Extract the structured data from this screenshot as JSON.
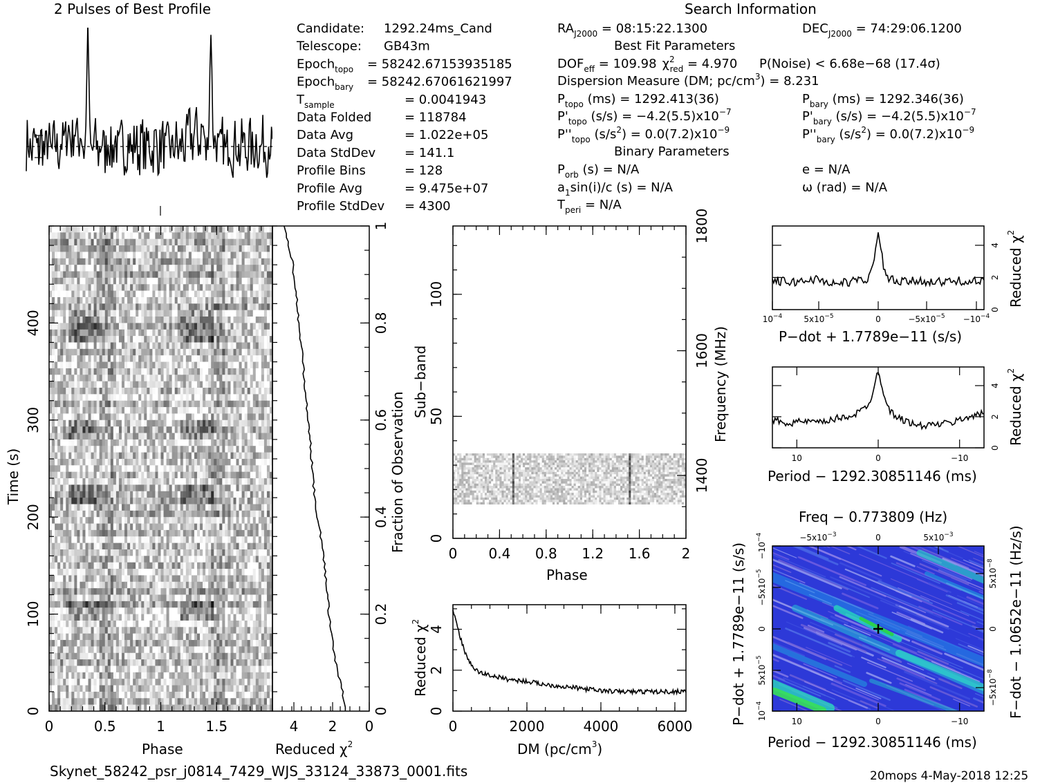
{
  "titles": {
    "profile": "2 Pulses of Best Profile",
    "search": "Search Information",
    "best_fit": "Best Fit Parameters",
    "binary": "Binary Parameters",
    "filename": "Skynet_58242_psr_j0814_7429_WJS_33124_33873_0001.fits",
    "footer_right": "20mops   4-May-2018 12:25"
  },
  "info_left": [
    {
      "label": "Candidate:",
      "value": "1292.24ms_Cand"
    },
    {
      "label": "Telescope:",
      "value": "GB43m"
    },
    {
      "label": "Epoch",
      "sub": "topo",
      "value": "= 58242.67153935185"
    },
    {
      "label": "Epoch",
      "sub": "bary",
      "value": "= 58242.67061621997"
    },
    {
      "label": "T",
      "sub": "sample",
      "value": "=   0.0041943"
    },
    {
      "label": "Data Folded",
      "value": "=   118784"
    },
    {
      "label": "Data Avg",
      "value": "=   1.022e+05"
    },
    {
      "label": "Data StdDev",
      "value": "=   141.1"
    },
    {
      "label": "Profile Bins",
      "value": "=   128"
    },
    {
      "label": "Profile Avg",
      "value": "=   9.475e+07"
    },
    {
      "label": "Profile StdDev",
      "value": "=   4300"
    }
  ],
  "info_mid": {
    "ra": "RA",
    "ra_sub": "J2000",
    "ra_val": " = 08:15:22.1300",
    "dof": "DOF",
    "dof_sub": "eff",
    "dof_val": " = 109.98",
    "chi": "χ",
    "chi_sup": "2",
    "chi_sub": "red",
    "chi_val": " = 4.970",
    "dm": "Dispersion Measure (DM; pc/cm",
    "dm_sup": "3",
    "dm_val": ") = 8.231",
    "ptopo": "P",
    "ptopo_sub": "topo",
    "ptopo_val": " (ms)  =   1292.413(36)",
    "pdtopo": "P'",
    "pdtopo_sub": "topo",
    "pdtopo_val": " (s/s) = −4.2(5.5)x10",
    "pdtopo_exp": "−7",
    "pddtopo": "P''",
    "pddtopo_sub": "topo",
    "pddtopo_val": " (s/s",
    "pddtopo_sup": "2",
    "pddtopo_val2": ") = 0.0(7.2)x10",
    "pddtopo_exp": "−9",
    "porb": "P",
    "porb_sub": "orb",
    "porb_val": " (s) = N/A",
    "a1": "a",
    "a1_sub": "1",
    "a1_val": "sin(i)/c (s) = N/A",
    "tperi": "T",
    "tperi_sub": "peri",
    "tperi_val": " = N/A"
  },
  "info_right": {
    "dec": "DEC",
    "dec_sub": "J2000",
    "dec_val": " = 74:29:06.1200",
    "pnoise": "P(Noise) < 6.68e−68   (17.4σ)",
    "pbary": "P",
    "pbary_sub": "bary",
    "pbary_val": " (ms)  =   1292.346(36)",
    "pdbary": "P'",
    "pdbary_sub": "bary",
    "pdbary_val": " (s/s) = −4.2(5.5)x10",
    "pdbary_exp": "−7",
    "pddbary": "P''",
    "pddbary_sub": "bary",
    "pddbary_val": " (s/s",
    "pddbary_sup": "2",
    "pddbary_val2": ") = 0.0(7.2)x10",
    "pddbary_exp": "−9",
    "ecc": "e = N/A",
    "omega": "ω (rad) = N/A"
  },
  "axis_text": {
    "phase": "Phase",
    "time": "Time (s)",
    "reduced_chi": "Reduced χ",
    "chi_sup": "2",
    "fraction": "Fraction of Observation",
    "subband": "Sub−band",
    "frequency": "Frequency (MHz)",
    "dm": "DM (pc/cm",
    "dm_sup": "3",
    "dm_close": ")",
    "pdot_label": "P−dot + 1.7789e−11 (s/s)",
    "period_label": "Period − 1292.30851146 (ms)",
    "freq_label": "Freq − 0.773809 (Hz)",
    "fdot_label": "F−dot − 1.0652e−11 (Hz/s)",
    "pdot_side": "P−dot + 1.7789e−11 (s/s)"
  },
  "ticks": {
    "phase_main": [
      "0",
      "0.5",
      "1",
      "1.5"
    ],
    "time": [
      "0",
      "100",
      "200",
      "300",
      "400"
    ],
    "redchi_bottom": [
      "4",
      "2",
      "0"
    ],
    "fraction": [
      "0",
      "0.2",
      "0.4",
      "0.6",
      "0.8",
      "1"
    ],
    "subband": [
      "0",
      "50",
      "100"
    ],
    "freq": [
      "1400",
      "1600",
      "1800"
    ],
    "phase_sub": [
      "0",
      "0.4",
      "0.8",
      "1.2",
      "1.6",
      "2"
    ],
    "dm": [
      "0",
      "2000",
      "4000",
      "6000"
    ],
    "redchi_dm": [
      "0",
      "2",
      "4"
    ],
    "redchi_small": [
      "0",
      "2",
      "4"
    ],
    "pdot_x": [
      "10",
      "−4",
      "5x10",
      "−5",
      "0",
      "−5x10",
      "−5",
      "−10",
      "−4"
    ],
    "period_x": [
      "10",
      "0",
      "−10"
    ],
    "freq_top": [
      "−5x10",
      "−3",
      "0",
      "5x10",
      "−3"
    ],
    "pp_left": [
      "10",
      "−4",
      "5x10",
      "−5",
      "0",
      "−5x10",
      "−5",
      "−10",
      "−4"
    ],
    "pp_right": [
      "5x10",
      "−8",
      "0",
      "−5x10",
      "−8"
    ]
  },
  "chart_data": [
    {
      "type": "line",
      "title": "2 Pulses of Best Profile",
      "x": [
        0,
        0.05,
        0.1,
        0.15,
        0.2,
        0.25,
        0.3,
        0.35,
        0.4,
        0.45,
        0.48,
        0.5,
        0.52,
        0.55,
        0.6,
        0.65,
        0.7,
        0.75,
        0.8,
        0.85,
        0.9,
        0.95,
        1.0,
        1.05,
        1.1,
        1.15,
        1.2,
        1.25,
        1.3,
        1.35,
        1.4,
        1.45,
        1.48,
        1.5,
        1.52,
        1.55,
        1.6,
        1.65,
        1.7,
        1.75,
        1.8,
        1.85,
        1.9,
        1.95,
        2.0
      ],
      "y": [
        0.1,
        -0.2,
        0.4,
        -0.6,
        0.3,
        0.9,
        -0.1,
        0.5,
        0.0,
        0.8,
        2.4,
        8.0,
        2.5,
        0.3,
        -0.5,
        0.6,
        -0.4,
        0.2,
        0.7,
        -0.3,
        0.4,
        -0.2,
        0.1,
        -0.2,
        0.4,
        -0.6,
        0.3,
        0.9,
        -0.1,
        0.5,
        0.0,
        0.8,
        2.4,
        8.0,
        2.5,
        0.3,
        -0.5,
        0.6,
        -0.4,
        0.2,
        0.7,
        -0.3,
        0.4,
        -0.2,
        0.1
      ]
    },
    {
      "type": "line",
      "xlabel": "Reduced χ2",
      "ylabel": "Time (s)",
      "x": [
        1.3,
        1.5,
        1.8,
        2.0,
        2.2,
        2.3,
        2.5,
        2.7,
        2.9,
        3.0,
        3.1,
        3.2,
        3.3,
        3.4,
        3.5,
        3.6,
        3.7,
        3.8,
        3.9,
        4.0,
        4.1,
        4.2,
        4.3,
        4.4,
        4.5
      ],
      "y": [
        0,
        20,
        45,
        70,
        100,
        130,
        160,
        190,
        215,
        240,
        265,
        290,
        310,
        330,
        350,
        370,
        390,
        410,
        430,
        450,
        465,
        475,
        485,
        495,
        500
      ],
      "xlim": [
        5,
        0
      ],
      "ylim": [
        0,
        500
      ]
    },
    {
      "type": "line",
      "xlabel": "DM (pc/cm3)",
      "ylabel": "Reduced χ2",
      "x": [
        0,
        100,
        200,
        300,
        400,
        500,
        700,
        1000,
        1500,
        2000,
        2500,
        3000,
        3500,
        4000,
        4500,
        5000,
        5500,
        6000,
        6300
      ],
      "y": [
        5.0,
        4.3,
        3.6,
        3.0,
        2.6,
        2.2,
        1.9,
        1.75,
        1.55,
        1.45,
        1.3,
        1.2,
        1.1,
        1.0,
        0.95,
        0.95,
        0.95,
        0.95,
        1.0
      ],
      "xlim": [
        0,
        6300
      ],
      "ylim": [
        0,
        5.2
      ]
    },
    {
      "type": "line",
      "xlabel": "P−dot + 1.7789e−11 (s/s)",
      "ylabel": "Reduced χ2",
      "x": [
        -1,
        -0.8,
        -0.6,
        -0.4,
        -0.2,
        -0.1,
        -0.05,
        0,
        0.05,
        0.1,
        0.2,
        0.4,
        0.6,
        0.8,
        1
      ],
      "y": [
        1.8,
        1.7,
        1.9,
        1.6,
        1.8,
        1.9,
        2.6,
        4.8,
        2.7,
        1.9,
        1.7,
        1.8,
        1.7,
        1.8,
        1.7
      ],
      "ylim": [
        0,
        5.2
      ]
    },
    {
      "type": "line",
      "xlabel": "Period − 1292.30851146 (ms)",
      "ylabel": "Reduced χ2",
      "x": [
        13,
        11,
        9,
        7,
        5,
        3,
        1.5,
        0.8,
        0,
        -0.8,
        -1.5,
        -3,
        -5,
        -7,
        -9,
        -11,
        -13
      ],
      "y": [
        1.8,
        1.6,
        1.7,
        1.6,
        1.9,
        2.1,
        2.6,
        3.3,
        5.0,
        3.3,
        2.3,
        1.8,
        1.4,
        1.5,
        1.6,
        2.0,
        2.2
      ],
      "ylim": [
        0,
        5.2
      ]
    },
    {
      "type": "heatmap",
      "xlabel": "Period − 1292.30851146 (ms)",
      "x2label": "Freq − 0.773809 (Hz)",
      "ylabel": "P−dot + 1.7789e−11 (s/s)",
      "y2label": "F−dot − 1.0652e−11 (Hz/s)"
    }
  ]
}
